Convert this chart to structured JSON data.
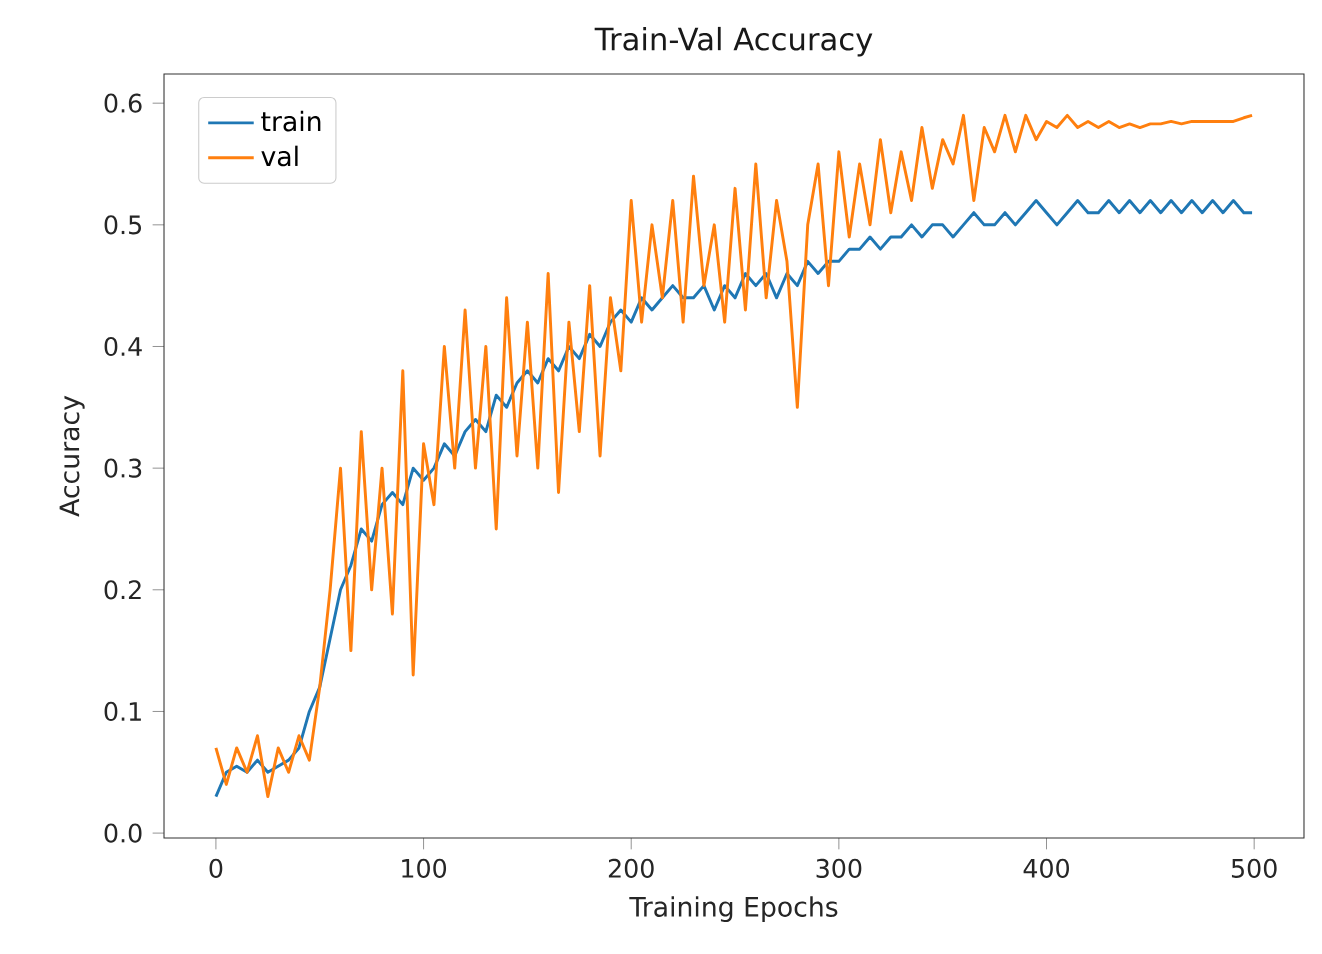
{
  "chart_data": {
    "type": "line",
    "title": "Train-Val Accuracy",
    "xlabel": "Training Epochs",
    "ylabel": "Accuracy",
    "x": [
      0,
      5,
      10,
      15,
      20,
      25,
      30,
      35,
      40,
      45,
      50,
      55,
      60,
      65,
      70,
      75,
      80,
      85,
      90,
      95,
      100,
      105,
      110,
      115,
      120,
      125,
      130,
      135,
      140,
      145,
      150,
      155,
      160,
      165,
      170,
      175,
      180,
      185,
      190,
      195,
      200,
      205,
      210,
      215,
      220,
      225,
      230,
      235,
      240,
      245,
      250,
      255,
      260,
      265,
      270,
      275,
      280,
      285,
      290,
      295,
      300,
      305,
      310,
      315,
      320,
      325,
      330,
      335,
      340,
      345,
      350,
      355,
      360,
      365,
      370,
      375,
      380,
      385,
      390,
      395,
      400,
      405,
      410,
      415,
      420,
      425,
      430,
      435,
      440,
      445,
      450,
      455,
      460,
      465,
      470,
      475,
      480,
      485,
      490,
      495,
      499
    ],
    "series": [
      {
        "name": "train",
        "color": "#1f77b4",
        "values": [
          0.03,
          0.05,
          0.055,
          0.05,
          0.06,
          0.05,
          0.055,
          0.06,
          0.07,
          0.1,
          0.12,
          0.16,
          0.2,
          0.22,
          0.25,
          0.24,
          0.27,
          0.28,
          0.27,
          0.3,
          0.29,
          0.3,
          0.32,
          0.31,
          0.33,
          0.34,
          0.33,
          0.36,
          0.35,
          0.37,
          0.38,
          0.37,
          0.39,
          0.38,
          0.4,
          0.39,
          0.41,
          0.4,
          0.42,
          0.43,
          0.42,
          0.44,
          0.43,
          0.44,
          0.45,
          0.44,
          0.44,
          0.45,
          0.43,
          0.45,
          0.44,
          0.46,
          0.45,
          0.46,
          0.44,
          0.46,
          0.45,
          0.47,
          0.46,
          0.47,
          0.47,
          0.48,
          0.48,
          0.49,
          0.48,
          0.49,
          0.49,
          0.5,
          0.49,
          0.5,
          0.5,
          0.49,
          0.5,
          0.51,
          0.5,
          0.5,
          0.51,
          0.5,
          0.51,
          0.52,
          0.51,
          0.5,
          0.51,
          0.52,
          0.51,
          0.51,
          0.52,
          0.51,
          0.52,
          0.51,
          0.52,
          0.51,
          0.52,
          0.51,
          0.52,
          0.51,
          0.52,
          0.51,
          0.52,
          0.51,
          0.51
        ]
      },
      {
        "name": "val",
        "color": "#ff7f0e",
        "values": [
          0.07,
          0.04,
          0.07,
          0.05,
          0.08,
          0.03,
          0.07,
          0.05,
          0.08,
          0.06,
          0.12,
          0.2,
          0.3,
          0.15,
          0.33,
          0.2,
          0.3,
          0.18,
          0.38,
          0.13,
          0.32,
          0.27,
          0.4,
          0.3,
          0.43,
          0.3,
          0.4,
          0.25,
          0.44,
          0.31,
          0.42,
          0.3,
          0.46,
          0.28,
          0.42,
          0.33,
          0.45,
          0.31,
          0.44,
          0.38,
          0.52,
          0.42,
          0.5,
          0.44,
          0.52,
          0.42,
          0.54,
          0.45,
          0.5,
          0.42,
          0.53,
          0.43,
          0.55,
          0.44,
          0.52,
          0.47,
          0.35,
          0.5,
          0.55,
          0.45,
          0.56,
          0.49,
          0.55,
          0.5,
          0.57,
          0.51,
          0.56,
          0.52,
          0.58,
          0.53,
          0.57,
          0.55,
          0.59,
          0.52,
          0.58,
          0.56,
          0.59,
          0.56,
          0.59,
          0.57,
          0.585,
          0.58,
          0.59,
          0.58,
          0.585,
          0.58,
          0.585,
          0.58,
          0.583,
          0.58,
          0.583,
          0.583,
          0.585,
          0.583,
          0.585,
          0.585,
          0.585,
          0.585,
          0.585,
          0.588,
          0.59
        ]
      }
    ],
    "xlim": [
      -25,
      524
    ],
    "ylim": [
      -0.004,
      0.624
    ],
    "xticks": [
      0,
      100,
      200,
      300,
      400,
      500
    ],
    "yticks": [
      {
        "value": 0,
        "label": "0.0"
      },
      {
        "value": 0.1,
        "label": "0.1"
      },
      {
        "value": 0.2,
        "label": "0.2"
      },
      {
        "value": 0.3,
        "label": "0.3"
      },
      {
        "value": 0.4,
        "label": "0.4"
      },
      {
        "value": 0.5,
        "label": "0.5"
      },
      {
        "value": 0.6,
        "label": "0.6"
      }
    ],
    "legend": "top left",
    "grid": false
  }
}
